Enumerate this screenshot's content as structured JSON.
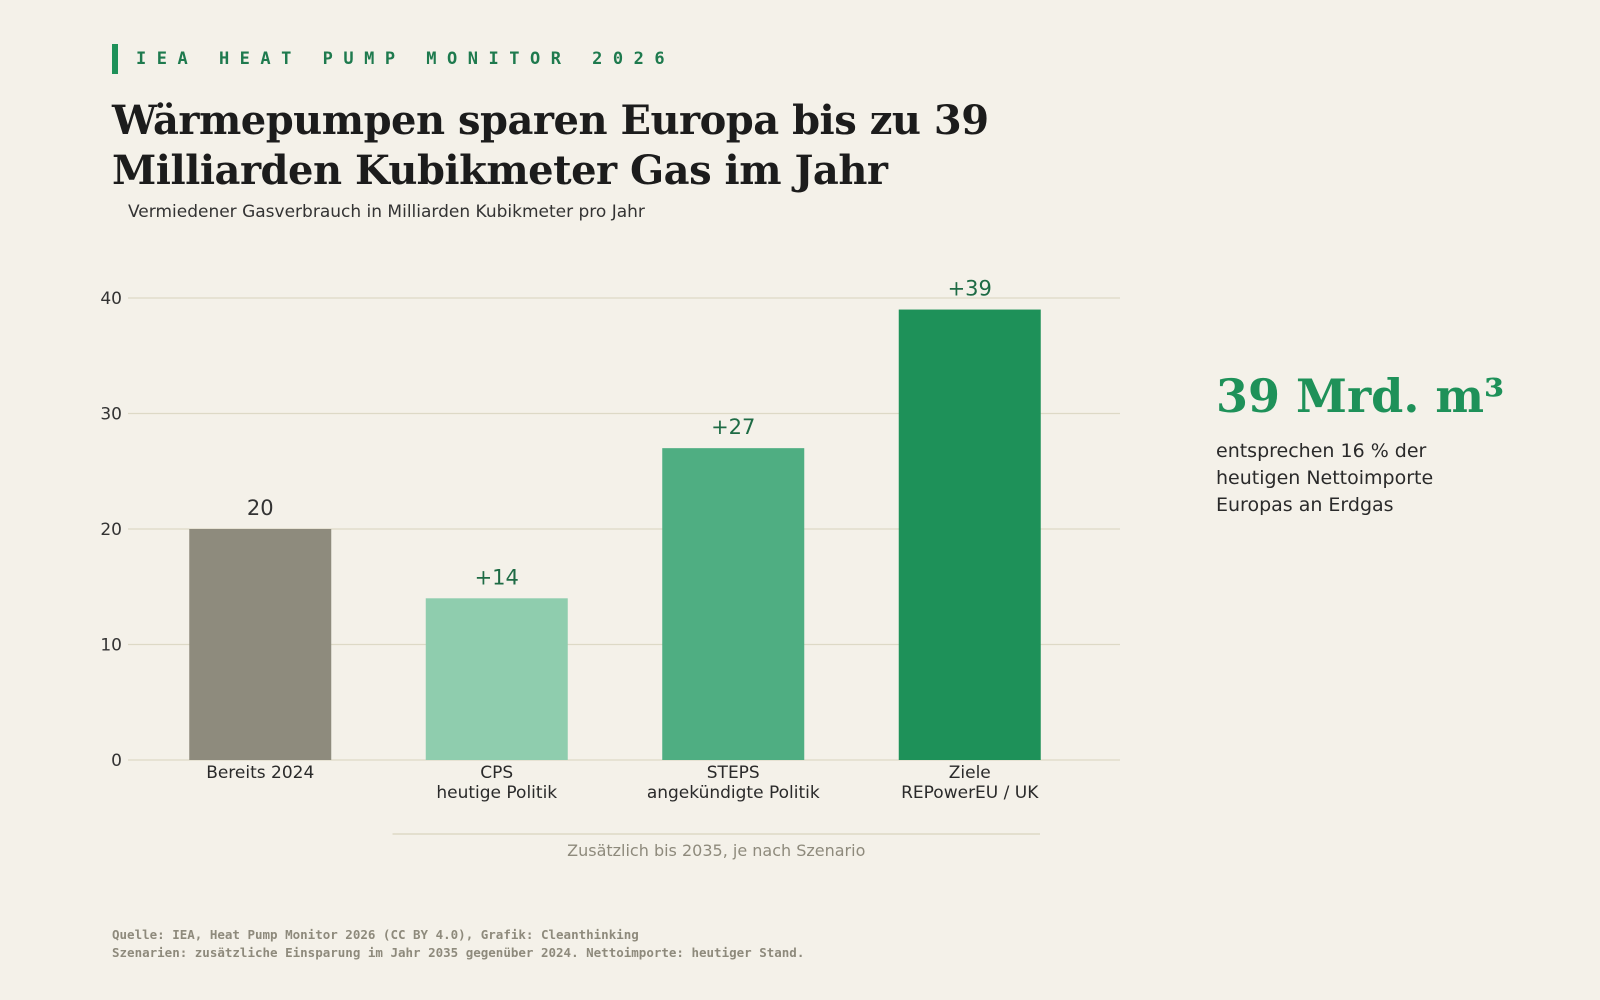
{
  "header": {
    "kicker": "IEA HEAT PUMP MONITOR 2026",
    "title": "Wärmepumpen sparen Europa bis zu 39 Milliarden Kubikmeter Gas im Jahr",
    "subtitle": "Vermiedener Gasverbrauch in Milliarden Kubikmeter pro Jahr"
  },
  "colors": {
    "background": "#f4f1e9",
    "accent": "#1e9159",
    "gridline": "#ddd9c6"
  },
  "chart_data": {
    "type": "bar",
    "title": "Wärmepumpen sparen Europa bis zu 39 Milliarden Kubikmeter Gas im Jahr",
    "subtitle": "Vermiedener Gasverbrauch in Milliarden Kubikmeter pro Jahr",
    "xlabel": "",
    "ylabel": "",
    "ylim": [
      0,
      40
    ],
    "yticks": [
      0,
      10,
      20,
      30,
      40
    ],
    "grid": true,
    "legend": "none",
    "categories": [
      [
        "Bereits 2024"
      ],
      [
        "CPS",
        "heutige Politik"
      ],
      [
        "STEPS",
        "angekündigte Politik"
      ],
      [
        "Ziele",
        "REPowerEU / UK"
      ]
    ],
    "values": [
      20,
      14,
      27,
      39
    ],
    "value_labels": [
      "20",
      "+14",
      "+27",
      "+39"
    ],
    "bar_colors": [
      "#8e8b7d",
      "#8fcdae",
      "#4fae82",
      "#1e9159"
    ],
    "label_colors": [
      "#333333",
      "#1e6b45",
      "#1e6b45",
      "#1e6b45"
    ],
    "group_annotation": {
      "text": "Zusätzlich bis 2035, je nach Szenario",
      "spans": [
        1,
        3
      ]
    }
  },
  "kpi": {
    "value": "39 Mrd. m³",
    "description": "entsprechen 16 % der heutigen Nettoimporte Europas an Erdgas"
  },
  "footer": {
    "source": "Quelle: IEA, Heat Pump Monitor 2026 (CC BY 4.0), Grafik: Cleanthinking",
    "note": "Szenarien: zusätzliche Einsparung im Jahr 2035 gegenüber 2024. Nettoimporte: heutiger Stand."
  }
}
